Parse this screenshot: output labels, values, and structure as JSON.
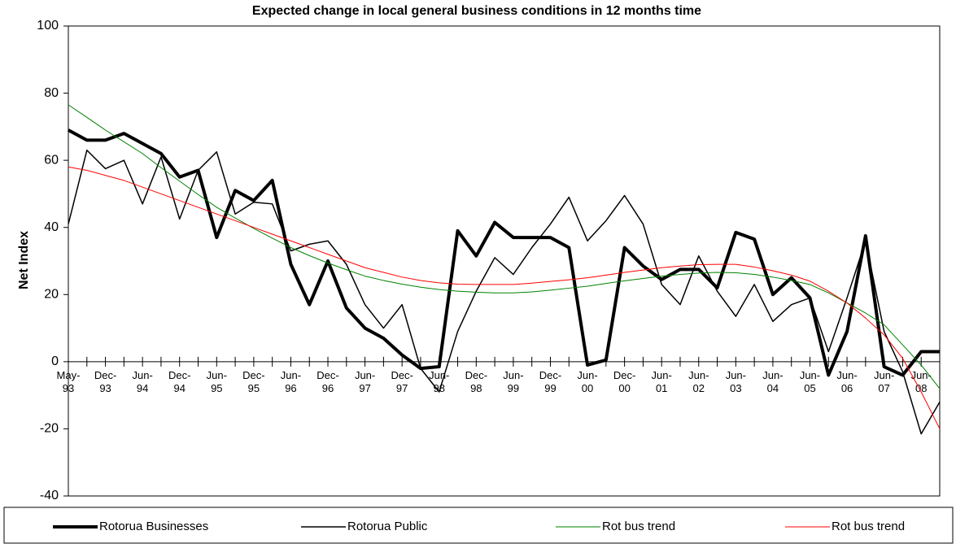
{
  "chart_data": {
    "type": "line",
    "title": "Expected change in local general business conditions in 12 months time",
    "y_label": "Net Index",
    "categories": [
      "May-93",
      null,
      "Dec-93",
      null,
      "Jun-94",
      null,
      "Dec-94",
      null,
      "Jun-95",
      null,
      "Dec-95",
      null,
      "Jun-96",
      null,
      "Dec-96",
      null,
      "Jun-97",
      null,
      "Dec-97",
      null,
      "Jun-98",
      null,
      "Dec-98",
      null,
      "Jun-99",
      null,
      "Dec-99",
      null,
      "Jun-00",
      null,
      "Dec-00",
      null,
      "Jun-01",
      null,
      "Jun-02",
      null,
      "Jun-03",
      null,
      "Jun-04",
      null,
      "Jun-05",
      null,
      "Jun-06",
      null,
      "Jun-07",
      null,
      "Jun-08",
      null
    ],
    "series": [
      {
        "name": "Rotorua Businesses",
        "color": "#000000",
        "width": 4,
        "values": [
          69,
          66,
          66,
          68,
          65,
          62,
          55,
          57,
          37,
          51,
          48,
          54,
          29,
          17,
          30,
          16,
          10,
          7,
          2,
          -2,
          -1.5,
          39,
          31.5,
          41.5,
          37,
          37,
          37,
          34,
          -1,
          0.5,
          34,
          28.5,
          24.5,
          27.5,
          27.5,
          22,
          38.5,
          36.5,
          20,
          25,
          19,
          -4,
          9,
          37.5,
          -1.5,
          -4,
          3,
          3
        ]
      },
      {
        "name": "Rotorua Public",
        "color": "#000000",
        "width": 1.5,
        "values": [
          41,
          63,
          57.5,
          60,
          47,
          61,
          42.5,
          57,
          62.5,
          44,
          47.5,
          47,
          33,
          35,
          36,
          29,
          17,
          10,
          17,
          -2,
          -9,
          9,
          21,
          31,
          26,
          34,
          41,
          49,
          36,
          42,
          49.5,
          41,
          23,
          17,
          31.5,
          21,
          13.5,
          23,
          12,
          17,
          19,
          3,
          19,
          36,
          9,
          -3,
          -21.5,
          -12
        ]
      },
      {
        "name": "Rot bus trend",
        "color": "#008000",
        "width": 1,
        "values": [
          76.5,
          72.8,
          69,
          65.5,
          62,
          57.8,
          53.8,
          49.8,
          46,
          42.8,
          39.7,
          36.8,
          34,
          31.6,
          29.4,
          27.4,
          25.5,
          24.2,
          23.1,
          22.2,
          21.5,
          21,
          20.7,
          20.5,
          20.5,
          20.8,
          21.3,
          21.9,
          22.5,
          23.3,
          24.1,
          24.8,
          25.5,
          26,
          26.4,
          26.6,
          26.5,
          26,
          25.2,
          24.2,
          23,
          20.5,
          17.5,
          14.5,
          11,
          5,
          -1,
          -8
        ]
      },
      {
        "name": "Rot bus trend",
        "color": "#ff0000",
        "width": 1,
        "values": [
          58,
          57,
          55.5,
          54,
          52,
          50,
          48,
          46,
          44,
          42,
          40,
          38,
          36,
          34,
          32,
          30,
          28,
          26.6,
          25.2,
          24.2,
          23.5,
          23.1,
          23,
          23,
          23,
          23.4,
          23.9,
          24.4,
          25,
          25.8,
          26.6,
          27.3,
          28,
          28.5,
          28.9,
          29,
          29,
          28.2,
          27.1,
          25.8,
          24,
          21,
          17.5,
          13,
          8,
          1,
          -9,
          -20
        ]
      }
    ],
    "ylim": [
      -40,
      100
    ],
    "yticks": [
      -40,
      -20,
      0,
      20,
      40,
      60,
      80,
      100
    ],
    "grid": false,
    "legend": "bottom"
  }
}
